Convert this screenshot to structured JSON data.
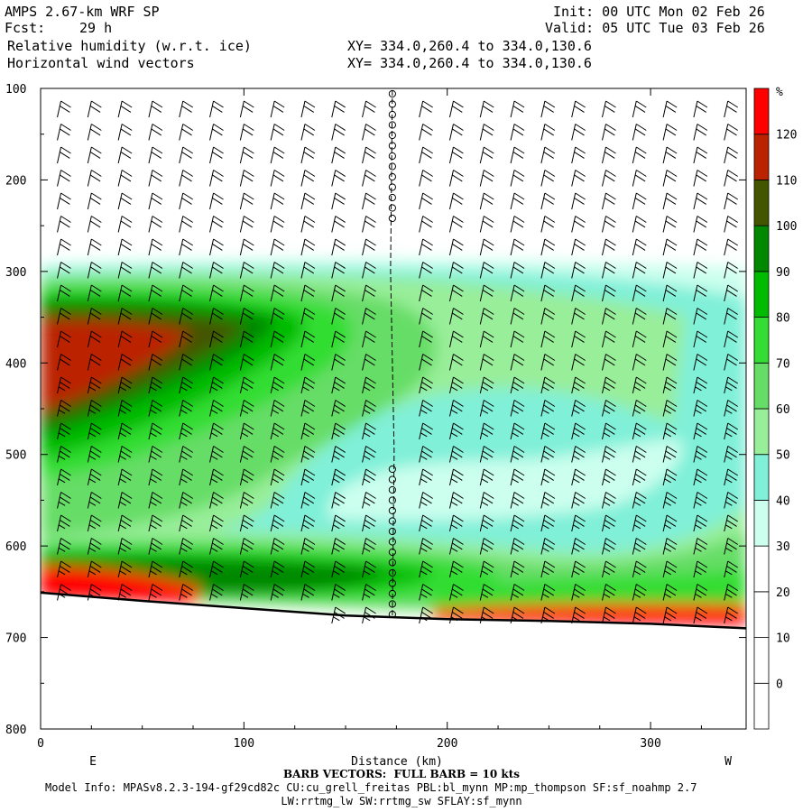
{
  "header": {
    "title": "AMPS 2.67-km WRF SP",
    "fcst_label": "Fcst:",
    "fcst_value": "29 h",
    "init": "Init: 00 UTC Mon 02 Feb 26",
    "valid": "Valid: 05 UTC Tue 03 Feb 26",
    "field1": "Relative humidity (w.r.t. ice)",
    "field2": "Horizontal wind vectors",
    "xy1": "XY= 334.0,260.4 to 334.0,130.6",
    "xy2": "XY= 334.0,260.4 to 334.0,130.6"
  },
  "chart_data": {
    "type": "heatmap",
    "xlabel": "Distance (km)",
    "ylabel": "",
    "xlim": [
      0,
      347
    ],
    "ylim": [
      800,
      100
    ],
    "x_ticks": [
      0,
      100,
      200,
      300
    ],
    "y_ticks": [
      100,
      200,
      300,
      400,
      500,
      600,
      700,
      800
    ],
    "left_end_label": "E",
    "right_end_label": "W",
    "colorbar": {
      "unit": "%",
      "levels": [
        0,
        10,
        20,
        30,
        40,
        50,
        60,
        70,
        80,
        90,
        100,
        110,
        120
      ],
      "colors": [
        "#ffffff",
        "#ffffff",
        "#ffffff",
        "#ffffff",
        "#ccffee",
        "#80f0d8",
        "#99ee99",
        "#66dd66",
        "#33dd33",
        "#00bb00",
        "#008800",
        "#445500",
        "#bb2200",
        "#ff0000"
      ]
    },
    "terrain_pressure": [
      [
        0,
        651
      ],
      [
        50,
        660
      ],
      [
        100,
        668
      ],
      [
        150,
        676
      ],
      [
        200,
        680
      ],
      [
        250,
        682
      ],
      [
        300,
        685
      ],
      [
        347,
        690
      ]
    ],
    "vertical_line_x": 173,
    "barb_columns_x": [
      10,
      25,
      40,
      55,
      70,
      85,
      100,
      115,
      130,
      145,
      160,
      188,
      203,
      218,
      233,
      248,
      263,
      278,
      293,
      308,
      323,
      338
    ]
  },
  "footer": {
    "barb_note": "BARB VECTORS:  FULL BARB = 10 kts",
    "model_info": "Model Info: MPASv8.2.3-194-gf29cd82c CU:cu_grell_freitas PBL:bl_mynn MP:mp_thompson SF:sf_noahmp 2.7",
    "model_info2": "LW:rrtmg_lw SW:rrtmg_sw SFLAY:sf_mynn"
  }
}
